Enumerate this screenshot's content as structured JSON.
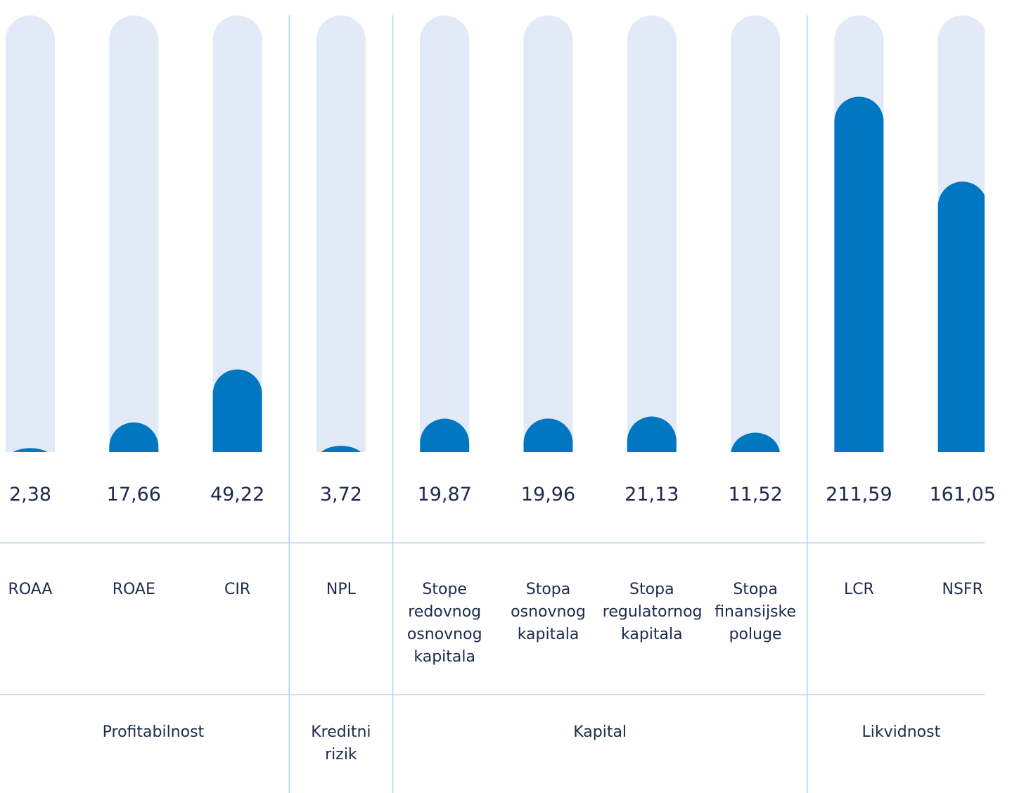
{
  "chart_data": {
    "type": "bar",
    "color": "#0077c0",
    "track_color": "#e1eaf6",
    "ylim": [
      0,
      260
    ],
    "groups": [
      {
        "name": "Profitabilnost",
        "categories": [
          "ROAA",
          "ROAE",
          "CIR"
        ],
        "values": [
          2.38,
          17.66,
          49.22
        ],
        "value_labels": [
          "2,38",
          "17,66",
          "49,22"
        ]
      },
      {
        "name": "Kreditni rizik",
        "categories": [
          "NPL"
        ],
        "values": [
          3.72
        ],
        "value_labels": [
          "3,72"
        ]
      },
      {
        "name": "Kapital",
        "categories": [
          "Stope redovnog osnovnog kapitala",
          "Stopa osnovnog kapitala",
          "Stopa regulatornog kapitala",
          "Stopa finansijske poluge"
        ],
        "values": [
          19.87,
          19.96,
          21.13,
          11.52
        ],
        "value_labels": [
          "19,87",
          "19,96",
          "21,13",
          "11,52"
        ]
      },
      {
        "name": "Likvidnost",
        "categories": [
          "LCR",
          "NSFR"
        ],
        "values": [
          211.59,
          161.05
        ],
        "value_labels": [
          "211,59",
          "161,05"
        ]
      }
    ]
  }
}
